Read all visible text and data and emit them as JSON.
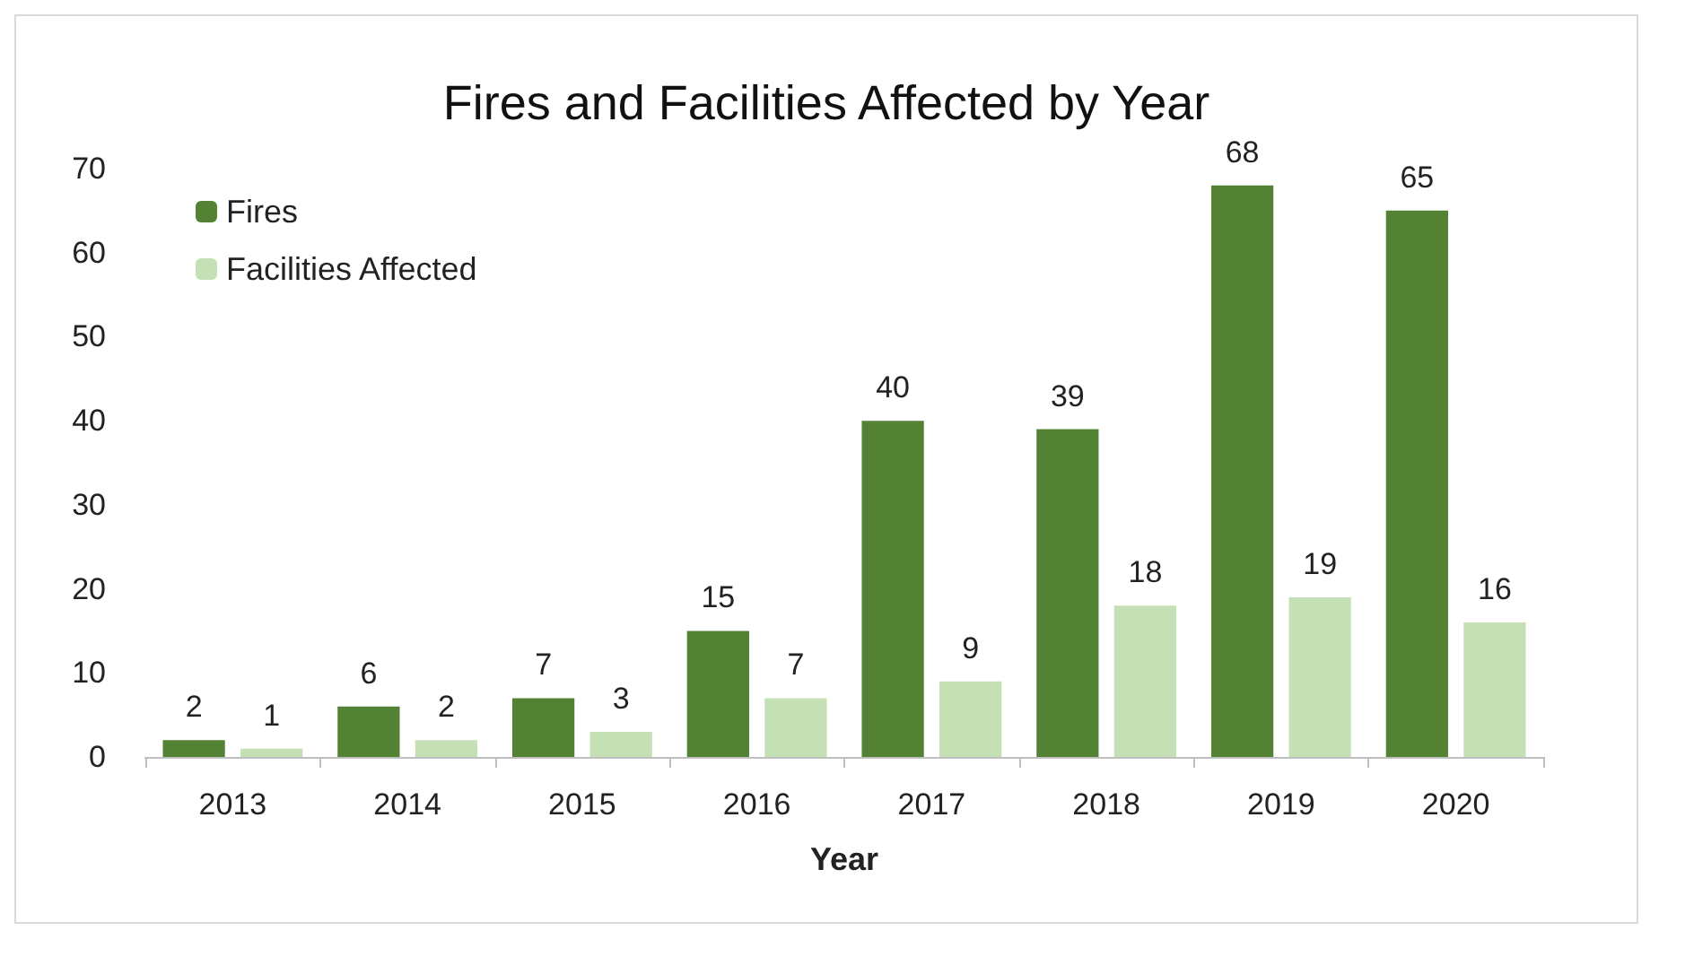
{
  "chart_data": {
    "type": "bar",
    "title": "Fires and Facilities Affected by Year",
    "xlabel": "Year",
    "categories": [
      "2013",
      "2014",
      "2015",
      "2016",
      "2017",
      "2018",
      "2019",
      "2020"
    ],
    "series": [
      {
        "name": "Fires",
        "color": "#548235",
        "values": [
          2,
          6,
          7,
          15,
          40,
          39,
          68,
          65
        ]
      },
      {
        "name": "Facilities Affected",
        "color": "#c5e0b4",
        "values": [
          1,
          2,
          3,
          7,
          9,
          18,
          19,
          16
        ]
      }
    ],
    "ylim": [
      0,
      70
    ],
    "yticks": [
      0,
      10,
      20,
      30,
      40,
      50,
      60,
      70
    ],
    "grid": false,
    "legend": "top left",
    "data_labels": true
  }
}
